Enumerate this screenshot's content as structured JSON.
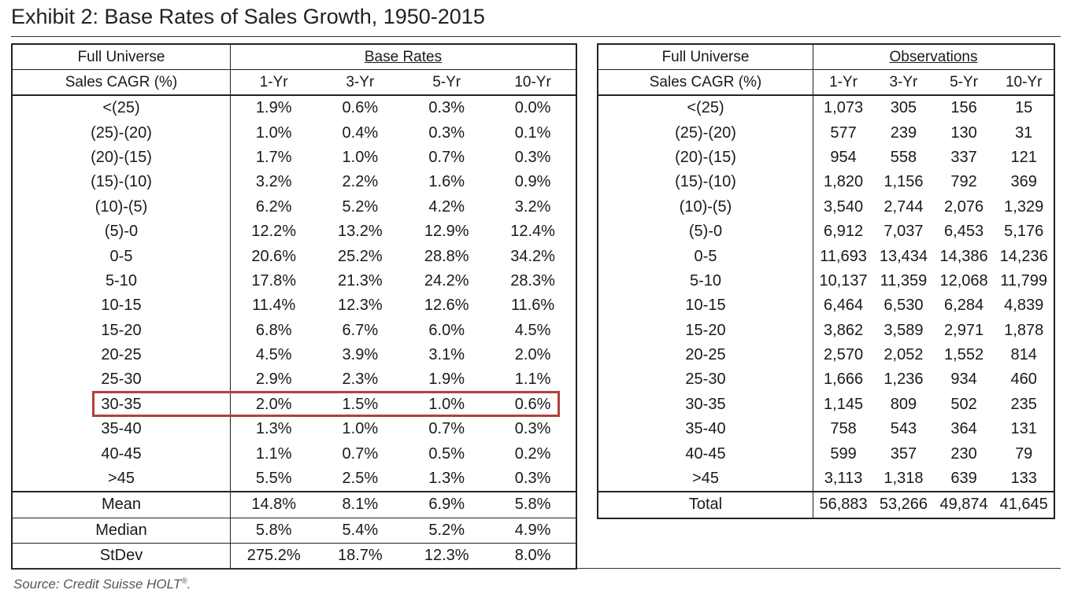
{
  "title": "Exhibit 2: Base Rates of Sales Growth, 1950-2015",
  "source": "Source: Credit Suisse HOLT",
  "source_mark": "®",
  "source_end": ".",
  "left": {
    "header1": "Full Universe",
    "header_group": "Base Rates",
    "header2": "Sales CAGR (%)",
    "periods": [
      "1-Yr",
      "3-Yr",
      "5-Yr",
      "10-Yr"
    ],
    "rows": [
      {
        "label": "<(25)",
        "vals": [
          "1.9%",
          "0.6%",
          "0.3%",
          "0.0%"
        ]
      },
      {
        "label": "(25)-(20)",
        "vals": [
          "1.0%",
          "0.4%",
          "0.3%",
          "0.1%"
        ]
      },
      {
        "label": "(20)-(15)",
        "vals": [
          "1.7%",
          "1.0%",
          "0.7%",
          "0.3%"
        ]
      },
      {
        "label": "(15)-(10)",
        "vals": [
          "3.2%",
          "2.2%",
          "1.6%",
          "0.9%"
        ]
      },
      {
        "label": "(10)-(5)",
        "vals": [
          "6.2%",
          "5.2%",
          "4.2%",
          "3.2%"
        ]
      },
      {
        "label": "(5)-0",
        "vals": [
          "12.2%",
          "13.2%",
          "12.9%",
          "12.4%"
        ]
      },
      {
        "label": "0-5",
        "vals": [
          "20.6%",
          "25.2%",
          "28.8%",
          "34.2%"
        ]
      },
      {
        "label": "5-10",
        "vals": [
          "17.8%",
          "21.3%",
          "24.2%",
          "28.3%"
        ]
      },
      {
        "label": "10-15",
        "vals": [
          "11.4%",
          "12.3%",
          "12.6%",
          "11.6%"
        ]
      },
      {
        "label": "15-20",
        "vals": [
          "6.8%",
          "6.7%",
          "6.0%",
          "4.5%"
        ]
      },
      {
        "label": "20-25",
        "vals": [
          "4.5%",
          "3.9%",
          "3.1%",
          "2.0%"
        ]
      },
      {
        "label": "25-30",
        "vals": [
          "2.9%",
          "2.3%",
          "1.9%",
          "1.1%"
        ]
      },
      {
        "label": "30-35",
        "vals": [
          "2.0%",
          "1.5%",
          "1.0%",
          "0.6%"
        ]
      },
      {
        "label": "35-40",
        "vals": [
          "1.3%",
          "1.0%",
          "0.7%",
          "0.3%"
        ]
      },
      {
        "label": "40-45",
        "vals": [
          "1.1%",
          "0.7%",
          "0.5%",
          "0.2%"
        ]
      },
      {
        "label": ">45",
        "vals": [
          "5.5%",
          "2.5%",
          "1.3%",
          "0.3%"
        ]
      }
    ],
    "summary": [
      {
        "label": "Mean",
        "vals": [
          "14.8%",
          "8.1%",
          "6.9%",
          "5.8%"
        ]
      },
      {
        "label": "Median",
        "vals": [
          "5.8%",
          "5.4%",
          "5.2%",
          "4.9%"
        ]
      },
      {
        "label": "StDev",
        "vals": [
          "275.2%",
          "18.7%",
          "12.3%",
          "8.0%"
        ]
      }
    ]
  },
  "right": {
    "header1": "Full Universe",
    "header_group": "Observations",
    "header2": "Sales CAGR (%)",
    "periods": [
      "1-Yr",
      "3-Yr",
      "5-Yr",
      "10-Yr"
    ],
    "rows": [
      {
        "label": "<(25)",
        "vals": [
          "1,073",
          "305",
          "156",
          "15"
        ]
      },
      {
        "label": "(25)-(20)",
        "vals": [
          "577",
          "239",
          "130",
          "31"
        ]
      },
      {
        "label": "(20)-(15)",
        "vals": [
          "954",
          "558",
          "337",
          "121"
        ]
      },
      {
        "label": "(15)-(10)",
        "vals": [
          "1,820",
          "1,156",
          "792",
          "369"
        ]
      },
      {
        "label": "(10)-(5)",
        "vals": [
          "3,540",
          "2,744",
          "2,076",
          "1,329"
        ]
      },
      {
        "label": "(5)-0",
        "vals": [
          "6,912",
          "7,037",
          "6,453",
          "5,176"
        ]
      },
      {
        "label": "0-5",
        "vals": [
          "11,693",
          "13,434",
          "14,386",
          "14,236"
        ]
      },
      {
        "label": "5-10",
        "vals": [
          "10,137",
          "11,359",
          "12,068",
          "11,799"
        ]
      },
      {
        "label": "10-15",
        "vals": [
          "6,464",
          "6,530",
          "6,284",
          "4,839"
        ]
      },
      {
        "label": "15-20",
        "vals": [
          "3,862",
          "3,589",
          "2,971",
          "1,878"
        ]
      },
      {
        "label": "20-25",
        "vals": [
          "2,570",
          "2,052",
          "1,552",
          "814"
        ]
      },
      {
        "label": "25-30",
        "vals": [
          "1,666",
          "1,236",
          "934",
          "460"
        ]
      },
      {
        "label": "30-35",
        "vals": [
          "1,145",
          "809",
          "502",
          "235"
        ]
      },
      {
        "label": "35-40",
        "vals": [
          "758",
          "543",
          "364",
          "131"
        ]
      },
      {
        "label": "40-45",
        "vals": [
          "599",
          "357",
          "230",
          "79"
        ]
      },
      {
        "label": ">45",
        "vals": [
          "3,113",
          "1,318",
          "639",
          "133"
        ]
      }
    ],
    "total": {
      "label": "Total",
      "vals": [
        "56,883",
        "53,266",
        "49,874",
        "41,645"
      ]
    }
  },
  "colors": {
    "highlight": "#b0413e",
    "rule": "#222222"
  }
}
